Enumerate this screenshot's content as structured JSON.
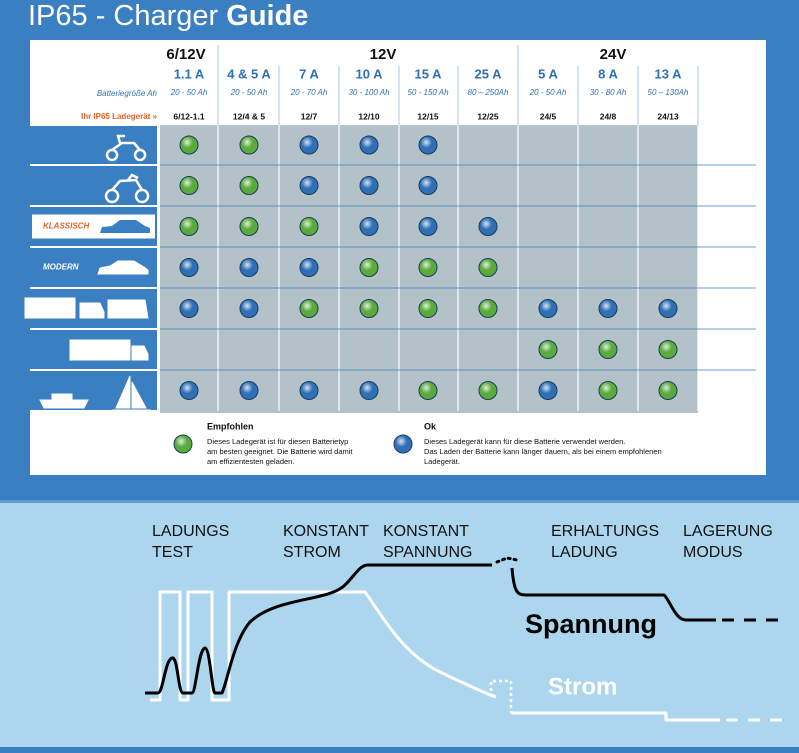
{
  "header": {
    "title_prefix": "IP65 - Charger",
    "title_bold": "Guide"
  },
  "table": {
    "voltages": [
      "6/12V",
      "12V",
      "24V"
    ],
    "row_labels": {
      "capacity": "Batteriegröße Ah",
      "model": "Ihr IP65 Ladegerät »"
    },
    "columns": [
      {
        "amps": "1.1 A",
        "capacity": "20 - 50 Ah",
        "model": "6/12-1.1"
      },
      {
        "amps": "4 & 5 A",
        "capacity": "20 - 50 Ah",
        "model": "12/4 & 5"
      },
      {
        "amps": "7 A",
        "capacity": "20 - 70 Ah",
        "model": "12/7"
      },
      {
        "amps": "10 A",
        "capacity": "30 - 100 Ah",
        "model": "12/10"
      },
      {
        "amps": "15 A",
        "capacity": "50 - 150 Ah",
        "model": "12/15"
      },
      {
        "amps": "25 A",
        "capacity": "80 – 250Ah",
        "model": "12/25"
      },
      {
        "amps": "5 A",
        "capacity": "20 - 50 Ah",
        "model": "24/5"
      },
      {
        "amps": "8 A",
        "capacity": "30 - 80 Ah",
        "model": "24/8"
      },
      {
        "amps": "13 A",
        "capacity": "50 – 130Ah",
        "model": "24/13"
      }
    ],
    "rows": [
      {
        "cells": [
          "#5aaa3c",
          "#5aaa3c",
          "#2f6fb5",
          "#2f6fb5",
          "#2f6fb5",
          null,
          null,
          null,
          null
        ]
      },
      {
        "cells": [
          "#5aaa3c",
          "#5aaa3c",
          "#2f6fb5",
          "#2f6fb5",
          "#2f6fb5",
          null,
          null,
          null,
          null
        ]
      },
      {
        "label": "KLASSISCH",
        "cells": [
          "#5aaa3c",
          "#5aaa3c",
          "#5aaa3c",
          "#2f6fb5",
          "#2f6fb5",
          "#2f6fb5",
          null,
          null,
          null
        ]
      },
      {
        "label": "MODERN",
        "cells": [
          "#2f6fb5",
          "#2f6fb5",
          "#2f6fb5",
          "#5aaa3c",
          "#5aaa3c",
          "#5aaa3c",
          null,
          null,
          null
        ]
      },
      {
        "cells": [
          "#2f6fb5",
          "#2f6fb5",
          "#5aaa3c",
          "#5aaa3c",
          "#5aaa3c",
          "#5aaa3c",
          "#2f6fb5",
          "#2f6fb5",
          "#2f6fb5"
        ]
      },
      {
        "cells": [
          null,
          null,
          null,
          null,
          null,
          null,
          "#5aaa3c",
          "#5aaa3c",
          "#5aaa3c"
        ]
      },
      {
        "cells": [
          "#2f6fb5",
          "#2f6fb5",
          "#2f6fb5",
          "#2f6fb5",
          "#5aaa3c",
          "#5aaa3c",
          "#2f6fb5",
          "#5aaa3c",
          "#5aaa3c"
        ]
      }
    ],
    "legend": [
      {
        "title": "Empfohlen",
        "color": "#5aaa3c",
        "lines": [
          "Dieses Ladegerät ist für diesen Batterietyp",
          "am besten geeignet. Die Batterie wird damit",
          "am effizientesten geladen."
        ]
      },
      {
        "title": "Ok",
        "color": "#2f6fb5",
        "lines": [
          "Dieses Ladegerät kann für diese Batterie verwendet werden.",
          "Das Laden der Batterie kann länger dauern, als bei einem empfohlenen",
          "Ladegerät."
        ]
      }
    ]
  },
  "diagram": {
    "phases": [
      [
        "LADUNGS",
        "TEST"
      ],
      [
        "KONSTANT",
        "STROM"
      ],
      [
        "KONSTANT",
        "SPANNUNG"
      ],
      [
        "ERHALTUNGS",
        "LADUNG"
      ],
      [
        "LAGERUNG",
        "MODUS"
      ]
    ],
    "voltage_label": "Spannung",
    "current_label": "Strom"
  }
}
